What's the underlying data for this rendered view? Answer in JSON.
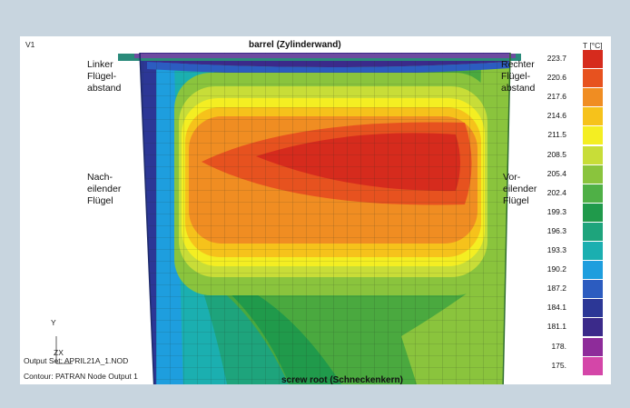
{
  "viewport_label": "V1",
  "top_label": "barrel (Zylinderwand)",
  "bottom_label": "screw root (Schneckenkern)",
  "left_top_label": "Linker\nFlügel-\nabstand",
  "right_top_label": "Rechter\nFlügel-\nabstand",
  "left_mid_label": "Nach-\neilender\nFlügel",
  "right_mid_label": "Vor-\neilender\nFlügel",
  "output_set": "Output Set: APRIL21A_1.NOD",
  "contour_info": "Contour: PATRAN Node Output 1",
  "axis_y_label": "Y",
  "axis_zx_label": "ZX",
  "legend": {
    "title": "T [°C]",
    "items": [
      {
        "value": "223.7",
        "color": "#d62b1d"
      },
      {
        "value": "220.6",
        "color": "#e7521f"
      },
      {
        "value": "217.6",
        "color": "#f08d22"
      },
      {
        "value": "214.6",
        "color": "#f6c21b"
      },
      {
        "value": "211.5",
        "color": "#f4ee22"
      },
      {
        "value": "208.5",
        "color": "#c8dd38"
      },
      {
        "value": "205.4",
        "color": "#8ac43d"
      },
      {
        "value": "202.4",
        "color": "#4fb046"
      },
      {
        "value": "199.3",
        "color": "#209a4b"
      },
      {
        "value": "196.3",
        "color": "#1ea47c"
      },
      {
        "value": "193.3",
        "color": "#1bafb0"
      },
      {
        "value": "190.2",
        "color": "#1e9ede"
      },
      {
        "value": "187.2",
        "color": "#2c5cc0"
      },
      {
        "value": "184.1",
        "color": "#2c3796"
      },
      {
        "value": "181.1",
        "color": "#3b2a8a"
      },
      {
        "value": "178.",
        "color": "#8e2c9a"
      },
      {
        "value": "175.",
        "color": "#d446a8"
      }
    ]
  }
}
